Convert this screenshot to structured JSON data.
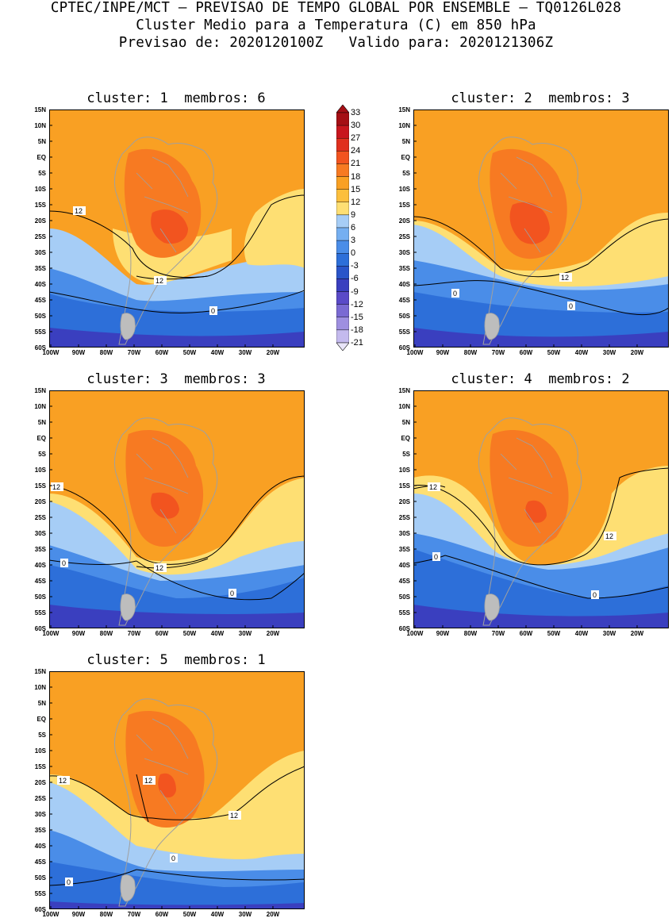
{
  "header": {
    "line1": "CPTEC/INPE/MCT – PREVISAO DE TEMPO GLOBAL POR ENSEMBLE – TQ0126L028",
    "line2": "Cluster Medio para a Temperatura (C) em 850 hPa",
    "line3": "Previsao de: 2020120100Z   Valido para: 2020121306Z"
  },
  "panels": [
    {
      "title": "cluster: 1  membros: 6",
      "contours": [
        "12",
        "12",
        "0"
      ]
    },
    {
      "title": "cluster: 2  membros: 3",
      "contours": [
        "12",
        "0",
        "0"
      ]
    },
    {
      "title": "cluster: 3  membros: 3",
      "contours": [
        "12",
        "12",
        "0",
        "0"
      ]
    },
    {
      "title": "cluster: 4  membros: 2",
      "contours": [
        "12",
        "12",
        "0",
        "0"
      ]
    },
    {
      "title": "cluster: 5  membros: 1",
      "contours": [
        "12",
        "12",
        "12",
        "0",
        "0"
      ]
    }
  ],
  "lat_ticks": [
    "15N",
    "10N",
    "5N",
    "EQ",
    "5S",
    "10S",
    "15S",
    "20S",
    "25S",
    "30S",
    "35S",
    "40S",
    "45S",
    "50S",
    "55S",
    "60S"
  ],
  "lon_ticks": [
    "100W",
    "90W",
    "80W",
    "70W",
    "60W",
    "50W",
    "40W",
    "30W",
    "20W"
  ],
  "colorbar": {
    "labels": [
      "33",
      "30",
      "27",
      "24",
      "21",
      "18",
      "15",
      "12",
      "9",
      "6",
      "3",
      "0",
      "-3",
      "-6",
      "-9",
      "-12",
      "-15",
      "-18",
      "-21"
    ],
    "colors": [
      "#a50f15",
      "#c8161e",
      "#e0301e",
      "#f2541f",
      "#f77a22",
      "#f9a023",
      "#fcbf3d",
      "#fedf73",
      "#a6cdf6",
      "#75aff1",
      "#4a8de8",
      "#2d6fd9",
      "#2a55c9",
      "#3a3fbf",
      "#5a4ac8",
      "#7a6ad3",
      "#9e8fe0",
      "#c4baee"
    ]
  },
  "colors": {
    "land_border": "#a0a0a0",
    "contour": "#000000"
  }
}
